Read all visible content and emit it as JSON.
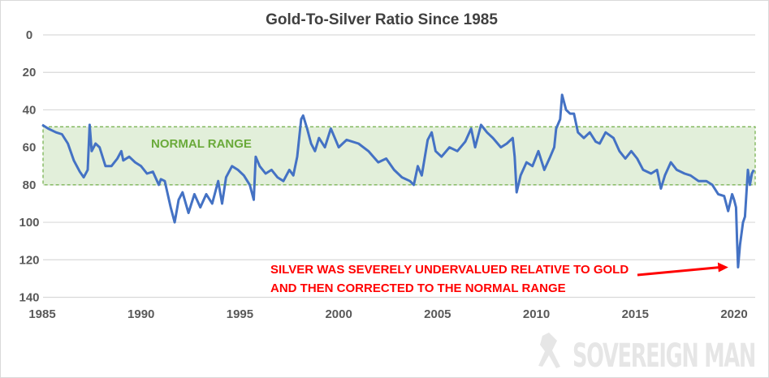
{
  "chart_data": {
    "type": "line",
    "title": "Gold-To-Silver Ratio Since 1985",
    "xlabel": "",
    "ylabel": "",
    "xlim": [
      1985,
      2021.1
    ],
    "ylim": [
      0,
      140
    ],
    "y_inverted": true,
    "grid": "horizontal",
    "x_ticks": [
      "1985",
      "1990",
      "1995",
      "2000",
      "2005",
      "2010",
      "2015",
      "2020"
    ],
    "y_ticks": [
      "0",
      "20",
      "40",
      "60",
      "80",
      "100",
      "120",
      "140"
    ],
    "line_color": "#4472c4",
    "band": {
      "label": "NORMAL RANGE",
      "from": 49,
      "to": 80,
      "fill": "#e2efda",
      "border": "#70ad47"
    },
    "annotation": {
      "lines": [
        "SILVER WAS SEVERELY UNDERVALUED RELATIVE TO GOLD",
        "AND THEN CORRECTED TO THE NORMAL RANGE"
      ],
      "color": "#ff0000",
      "points_to": [
        2020.2,
        124
      ]
    },
    "series": [
      {
        "points": [
          [
            1985.0,
            48
          ],
          [
            1985.3,
            50
          ],
          [
            1985.7,
            52
          ],
          [
            1986.0,
            53
          ],
          [
            1986.3,
            58
          ],
          [
            1986.6,
            67
          ],
          [
            1986.9,
            73
          ],
          [
            1987.1,
            76
          ],
          [
            1987.3,
            72
          ],
          [
            1987.4,
            48
          ],
          [
            1987.5,
            62
          ],
          [
            1987.7,
            58
          ],
          [
            1987.9,
            60
          ],
          [
            1988.2,
            70
          ],
          [
            1988.5,
            70
          ],
          [
            1988.8,
            66
          ],
          [
            1989.0,
            62
          ],
          [
            1989.1,
            67
          ],
          [
            1989.4,
            65
          ],
          [
            1989.7,
            68
          ],
          [
            1990.0,
            70
          ],
          [
            1990.3,
            74
          ],
          [
            1990.6,
            73
          ],
          [
            1990.9,
            80
          ],
          [
            1991.0,
            77
          ],
          [
            1991.2,
            78
          ],
          [
            1991.5,
            92
          ],
          [
            1991.7,
            100
          ],
          [
            1991.9,
            88
          ],
          [
            1992.1,
            84
          ],
          [
            1992.4,
            95
          ],
          [
            1992.7,
            85
          ],
          [
            1993.0,
            92
          ],
          [
            1993.3,
            85
          ],
          [
            1993.6,
            90
          ],
          [
            1993.9,
            78
          ],
          [
            1994.1,
            90
          ],
          [
            1994.3,
            76
          ],
          [
            1994.6,
            70
          ],
          [
            1994.9,
            72
          ],
          [
            1995.2,
            75
          ],
          [
            1995.5,
            80
          ],
          [
            1995.7,
            88
          ],
          [
            1995.8,
            65
          ],
          [
            1996.0,
            70
          ],
          [
            1996.3,
            74
          ],
          [
            1996.6,
            72
          ],
          [
            1996.9,
            76
          ],
          [
            1997.2,
            78
          ],
          [
            1997.5,
            72
          ],
          [
            1997.7,
            75
          ],
          [
            1997.9,
            65
          ],
          [
            1998.1,
            45
          ],
          [
            1998.2,
            43
          ],
          [
            1998.4,
            50
          ],
          [
            1998.6,
            58
          ],
          [
            1998.8,
            62
          ],
          [
            1999.0,
            55
          ],
          [
            1999.3,
            60
          ],
          [
            1999.6,
            50
          ],
          [
            1999.8,
            55
          ],
          [
            2000.0,
            60
          ],
          [
            2000.4,
            56
          ],
          [
            2001.0,
            58
          ],
          [
            2001.5,
            62
          ],
          [
            2002.0,
            68
          ],
          [
            2002.4,
            66
          ],
          [
            2002.8,
            72
          ],
          [
            2003.2,
            76
          ],
          [
            2003.6,
            78
          ],
          [
            2003.8,
            80
          ],
          [
            2004.0,
            70
          ],
          [
            2004.2,
            75
          ],
          [
            2004.5,
            56
          ],
          [
            2004.7,
            52
          ],
          [
            2004.9,
            62
          ],
          [
            2005.2,
            65
          ],
          [
            2005.6,
            60
          ],
          [
            2006.0,
            62
          ],
          [
            2006.4,
            57
          ],
          [
            2006.7,
            50
          ],
          [
            2006.9,
            60
          ],
          [
            2007.2,
            48
          ],
          [
            2007.5,
            52
          ],
          [
            2007.8,
            55
          ],
          [
            2008.2,
            60
          ],
          [
            2008.5,
            58
          ],
          [
            2008.8,
            55
          ],
          [
            2008.9,
            65
          ],
          [
            2009.0,
            84
          ],
          [
            2009.2,
            75
          ],
          [
            2009.5,
            68
          ],
          [
            2009.8,
            70
          ],
          [
            2010.1,
            62
          ],
          [
            2010.4,
            72
          ],
          [
            2010.7,
            65
          ],
          [
            2010.9,
            60
          ],
          [
            2011.0,
            50
          ],
          [
            2011.2,
            45
          ],
          [
            2011.3,
            32
          ],
          [
            2011.5,
            40
          ],
          [
            2011.7,
            42
          ],
          [
            2011.9,
            42
          ],
          [
            2012.1,
            52
          ],
          [
            2012.4,
            55
          ],
          [
            2012.7,
            52
          ],
          [
            2013.0,
            57
          ],
          [
            2013.2,
            58
          ],
          [
            2013.5,
            52
          ],
          [
            2013.9,
            55
          ],
          [
            2014.2,
            62
          ],
          [
            2014.5,
            66
          ],
          [
            2014.8,
            62
          ],
          [
            2015.1,
            66
          ],
          [
            2015.4,
            72
          ],
          [
            2015.8,
            74
          ],
          [
            2016.1,
            72
          ],
          [
            2016.3,
            82
          ],
          [
            2016.5,
            75
          ],
          [
            2016.8,
            68
          ],
          [
            2017.1,
            72
          ],
          [
            2017.5,
            74
          ],
          [
            2017.8,
            75
          ],
          [
            2018.2,
            78
          ],
          [
            2018.6,
            78
          ],
          [
            2018.9,
            80
          ],
          [
            2019.2,
            85
          ],
          [
            2019.5,
            86
          ],
          [
            2019.7,
            94
          ],
          [
            2019.9,
            85
          ],
          [
            2020.0,
            88
          ],
          [
            2020.1,
            92
          ],
          [
            2020.15,
            110
          ],
          [
            2020.2,
            124
          ],
          [
            2020.3,
            112
          ],
          [
            2020.45,
            100
          ],
          [
            2020.55,
            97
          ],
          [
            2020.7,
            72
          ],
          [
            2020.8,
            80
          ],
          [
            2020.9,
            74
          ],
          [
            2021.0,
            72
          ]
        ]
      }
    ]
  },
  "watermark": "SOVEREIGN MAN"
}
